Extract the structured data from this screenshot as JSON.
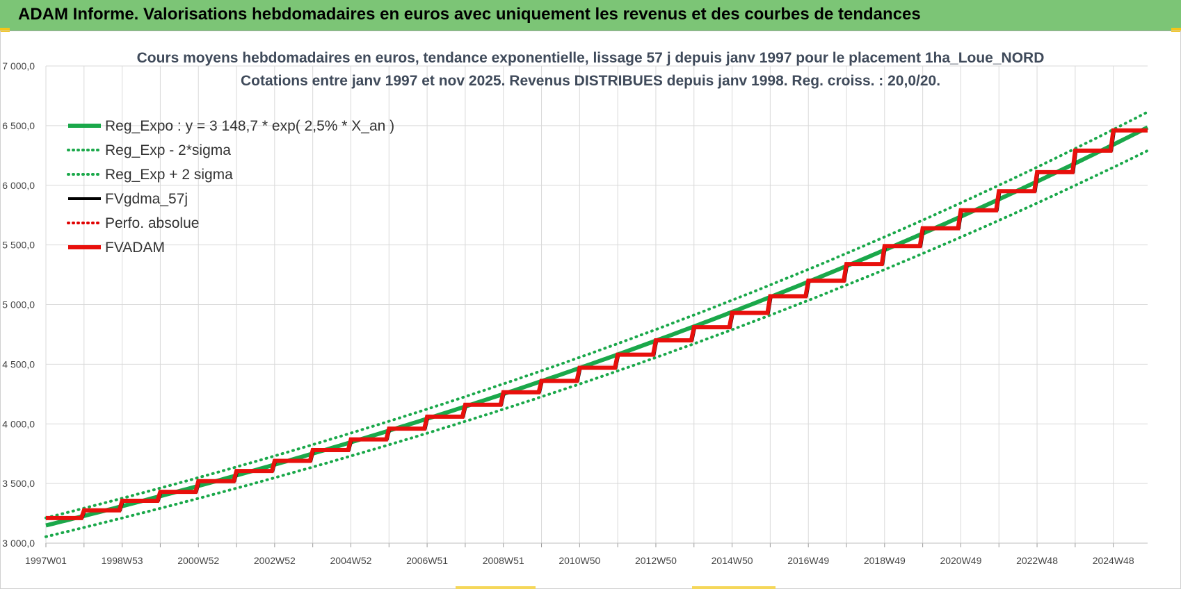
{
  "header": {
    "title": "ADAM Informe. Valorisations hebdomadaires en euros avec uniquement les revenus et des courbes de tendances"
  },
  "colors": {
    "banner": "#7cc576",
    "reg_expo": "#1aa84a",
    "bands": "#1aa84a",
    "fvgdma": "#000000",
    "perfo": "#e00000",
    "fvadam": "#e8100c",
    "grid": "#d9d9d9"
  },
  "chart_data": {
    "type": "line",
    "title_line1": "Cours moyens hebdomadaires en euros, tendance exponentielle, lissage 57 j depuis janv 1997  pour le placement 1ha_Loue_NORD",
    "title_line2": "Cotations entre janv 1997 et nov 2025. Revenus  DISTRIBUES depuis janv 1998.  Reg. croiss. : 20,0/20.",
    "ylim": [
      3000,
      7000
    ],
    "y_ticks": [
      3000,
      3500,
      4000,
      4500,
      5000,
      5500,
      6000,
      6500,
      7000
    ],
    "y_tick_labels": [
      "3 000,0",
      "3 500,0",
      "4 000,0",
      "4 500,0",
      "5 000,0",
      "5 500,0",
      "6 000,0",
      "6 500,0",
      "7 000,0"
    ],
    "xlim": [
      1997.0,
      2025.9
    ],
    "x_ticks": [
      1997.0,
      1999.0,
      2001.0,
      2003.0,
      2005.0,
      2007.0,
      2009.0,
      2011.0,
      2013.0,
      2015.0,
      2017.0,
      2019.0,
      2021.0,
      2023.0,
      2025.0
    ],
    "x_tick_labels": [
      "1997W01",
      "1998W53",
      "2000W52",
      "2002W52",
      "2004W52",
      "2006W51",
      "2008W51",
      "2010W50",
      "2012W50",
      "2014W50",
      "2016W49",
      "2018W49",
      "2020W49",
      "2022W48",
      "2024W48"
    ],
    "grid": true,
    "legend_position": "top-left",
    "legend": [
      {
        "name": "Reg_Expo : y = 3 148,7 * exp( 2,5% *  X_an )",
        "style": "solid-thick",
        "color": "#1aa84a"
      },
      {
        "name": "Reg_Exp - 2*sigma",
        "style": "dotted",
        "color": "#1aa84a"
      },
      {
        "name": "Reg_Exp + 2 sigma",
        "style": "dotted",
        "color": "#1aa84a"
      },
      {
        "name": "FVgdma_57j",
        "style": "solid",
        "color": "#000000"
      },
      {
        "name": "Perfo. absolue",
        "style": "dotted",
        "color": "#e00000"
      },
      {
        "name": "FVADAM",
        "style": "solid-thick",
        "color": "#e8100c"
      }
    ],
    "regression": {
      "a": 3148.7,
      "rate": 0.025,
      "x0": 1997.0,
      "band_minus": 0.97,
      "band_plus": 1.02
    },
    "fvadam_steps": {
      "x": [
        1997.0,
        1998.0,
        1999.0,
        2000.0,
        2001.0,
        2002.0,
        2003.0,
        2004.0,
        2005.0,
        2006.0,
        2007.0,
        2008.0,
        2009.0,
        2010.0,
        2011.0,
        2012.0,
        2013.0,
        2014.0,
        2015.0,
        2016.0,
        2017.0,
        2018.0,
        2019.0,
        2020.0,
        2021.0,
        2022.0,
        2023.0,
        2024.0,
        2025.0
      ],
      "values": [
        3210,
        3275,
        3355,
        3430,
        3520,
        3605,
        3690,
        3780,
        3870,
        3960,
        4060,
        4160,
        4265,
        4360,
        4470,
        4580,
        4700,
        4810,
        4930,
        5070,
        5200,
        5340,
        5490,
        5640,
        5790,
        5950,
        6110,
        6290,
        6460
      ]
    }
  }
}
